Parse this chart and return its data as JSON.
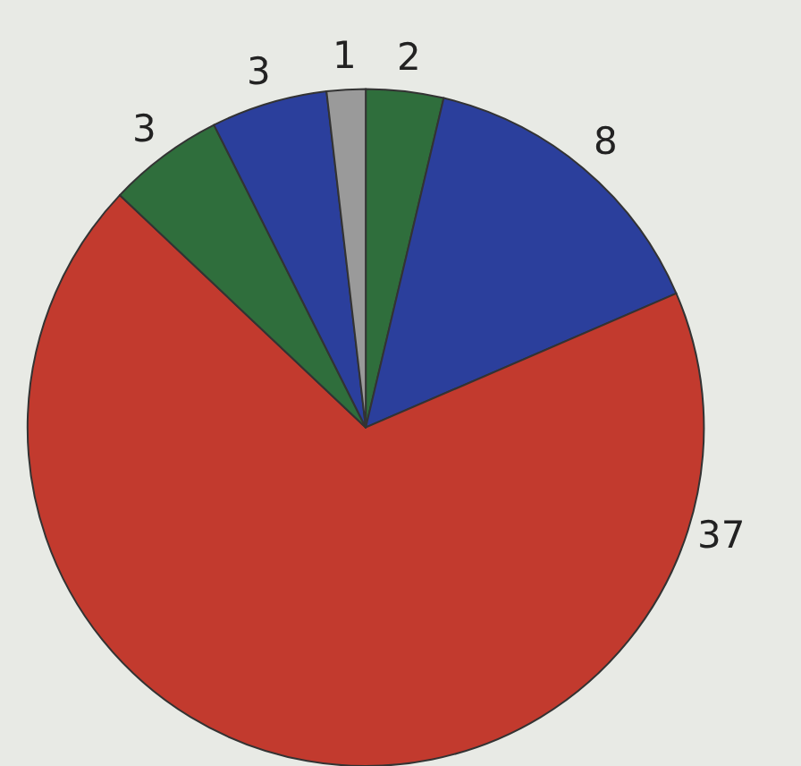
{
  "chart_data": {
    "type": "pie",
    "categories": [
      null,
      null,
      null,
      null,
      null,
      null
    ],
    "values": [
      2,
      8,
      37,
      3,
      3,
      1
    ],
    "colors": [
      "#2f6e3c",
      "#2b3f9c",
      "#c23a2e",
      "#2f6e3c",
      "#2b3f9c",
      "#9a9a9a"
    ],
    "value_labels": [
      "2",
      "8",
      "37",
      "3",
      "3",
      "1"
    ],
    "legend": false
  }
}
